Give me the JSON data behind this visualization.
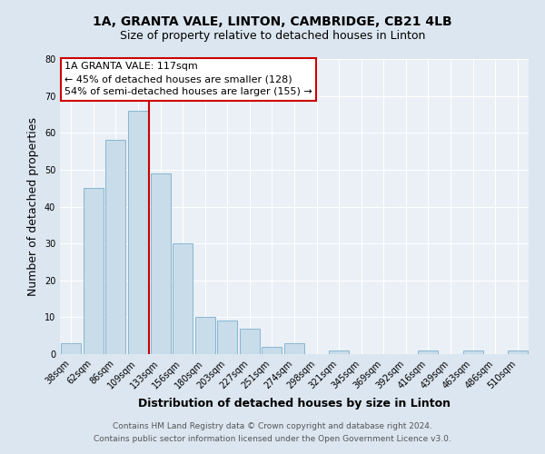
{
  "title": "1A, GRANTA VALE, LINTON, CAMBRIDGE, CB21 4LB",
  "subtitle": "Size of property relative to detached houses in Linton",
  "xlabel": "Distribution of detached houses by size in Linton",
  "ylabel": "Number of detached properties",
  "bar_labels": [
    "38sqm",
    "62sqm",
    "86sqm",
    "109sqm",
    "133sqm",
    "156sqm",
    "180sqm",
    "203sqm",
    "227sqm",
    "251sqm",
    "274sqm",
    "298sqm",
    "321sqm",
    "345sqm",
    "369sqm",
    "392sqm",
    "416sqm",
    "439sqm",
    "463sqm",
    "486sqm",
    "510sqm"
  ],
  "bar_values": [
    3,
    45,
    58,
    66,
    49,
    30,
    10,
    9,
    7,
    2,
    3,
    0,
    1,
    0,
    0,
    0,
    1,
    0,
    1,
    0,
    1
  ],
  "bar_color": "#c8dcea",
  "bar_edge_color": "#7aafcc",
  "ylim": [
    0,
    80
  ],
  "yticks": [
    0,
    10,
    20,
    30,
    40,
    50,
    60,
    70,
    80
  ],
  "vline_x": 3.5,
  "vline_color": "#cc0000",
  "annotation_line1": "1A GRANTA VALE: 117sqm",
  "annotation_line2": "← 45% of detached houses are smaller (128)",
  "annotation_line3": "54% of semi-detached houses are larger (155) →",
  "annotation_box_color": "#ffffff",
  "annotation_box_edge": "#cc0000",
  "footer_line1": "Contains HM Land Registry data © Crown copyright and database right 2024.",
  "footer_line2": "Contains public sector information licensed under the Open Government Licence v3.0.",
  "bg_color": "#dce6f0",
  "plot_bg_color": "#eaf0f6",
  "grid_color": "#ffffff",
  "title_fontsize": 10,
  "subtitle_fontsize": 9,
  "axis_label_fontsize": 9,
  "tick_fontsize": 7,
  "annotation_fontsize": 8,
  "footer_fontsize": 6.5
}
